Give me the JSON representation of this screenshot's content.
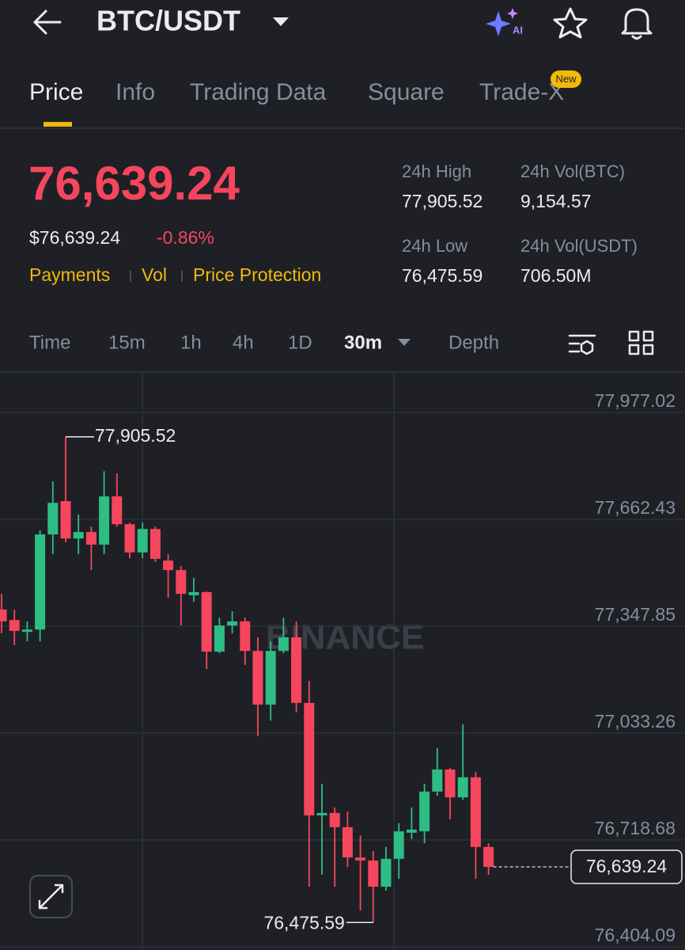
{
  "header": {
    "title": "BTC/USDT",
    "ai_label": "AI"
  },
  "tabs": [
    "Price",
    "Info",
    "Trading Data",
    "Square",
    "Trade-X"
  ],
  "tab_badge": "New",
  "ticker": {
    "price": "76,639.24",
    "usd_price": "$76,639.24",
    "change": "-0.86%",
    "links": [
      "Payments",
      "Vol",
      "Price Protection"
    ],
    "stats": [
      {
        "label": "24h High",
        "value": "77,905.52"
      },
      {
        "label": "24h Vol(BTC)",
        "value": "9,154.57"
      },
      {
        "label": "24h Low",
        "value": "76,475.59"
      },
      {
        "label": "24h Vol(USDT)",
        "value": "706.50M"
      }
    ]
  },
  "intervals": [
    "Time",
    "15m",
    "1h",
    "4h",
    "1D",
    "30m",
    "Depth"
  ],
  "chart": {
    "type": "candlestick",
    "watermark": "BINANCE",
    "up_color": "#2ebd85",
    "down_color": "#f6465d",
    "grid": true,
    "ylim": [
      76394.6,
      78095.9
    ],
    "yticks": [
      {
        "value": 77977.02,
        "label": "77,977.02"
      },
      {
        "value": 77662.43,
        "label": "77,662.43"
      },
      {
        "value": 77347.85,
        "label": "77,347.85"
      },
      {
        "value": 77033.26,
        "label": "77,033.26"
      },
      {
        "value": 76718.68,
        "label": "76,718.68"
      },
      {
        "value": 76404.09,
        "label": "76,404.09"
      }
    ],
    "open": [
      77397,
      77366,
      77331,
      77338,
      77618,
      77716,
      77606,
      77625,
      77588,
      77730,
      77648,
      77565,
      77634,
      77541,
      77513,
      77439,
      77448,
      77273,
      77350,
      77362,
      77275,
      77117,
      77275,
      77315,
      77122,
      76791,
      76798,
      76756,
      76667,
      76658,
      76581,
      76663,
      76740,
      76744,
      76861,
      76926,
      76844,
      76903,
      76698
    ],
    "high": [
      77443,
      77397,
      77362,
      77630,
      77774,
      77905.52,
      77676,
      77641,
      77804,
      77798,
      77653,
      77653,
      77641,
      77560,
      77525,
      77490,
      77450,
      77373,
      77392,
      77373,
      77315,
      77303,
      77373,
      77362,
      77187,
      76884,
      76814,
      76802,
      76732,
      76686,
      76698,
      76768,
      76814,
      76884,
      76989,
      76931,
      77059,
      76919,
      76709
    ],
    "low": [
      77327,
      77292,
      77303,
      77303,
      77560,
      77595,
      77560,
      77513,
      77560,
      77641,
      77548,
      77548,
      77537,
      77432,
      77350,
      77420,
      77222,
      77268,
      77327,
      77234,
      77024,
      77070,
      77268,
      77094,
      76581,
      76616,
      76581,
      76639,
      76511,
      76475.59,
      76569,
      76604,
      76721,
      76709,
      76849,
      76779,
      76837,
      76604,
      76616
    ],
    "close": [
      77362,
      77334,
      77338,
      77618,
      77711,
      77606,
      77625,
      77588,
      77730,
      77648,
      77565,
      77634,
      77546,
      77513,
      77443,
      77448,
      77273,
      77350,
      77362,
      77275,
      77117,
      77275,
      77315,
      77122,
      76791,
      76798,
      76756,
      76667,
      76658,
      76581,
      76663,
      76744,
      76749,
      76861,
      76926,
      76844,
      76903,
      76698,
      76639.24
    ],
    "high_label": {
      "value": 77905.52,
      "label": "77,905.52"
    },
    "low_label": {
      "value": 76475.59,
      "label": "76,475.59"
    },
    "last_price": {
      "value": 76639.24,
      "label": "76,639.24"
    }
  }
}
